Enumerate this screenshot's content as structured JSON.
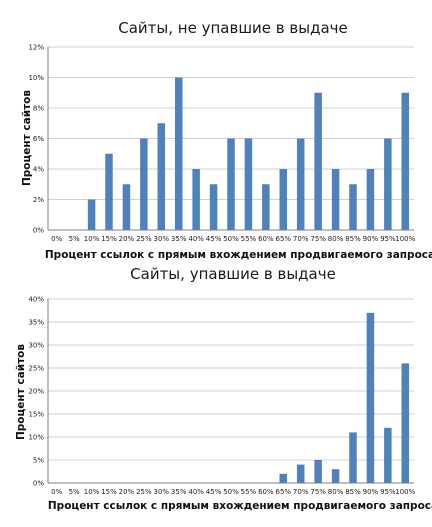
{
  "chart_data": [
    {
      "type": "bar",
      "title": "Сайты, не упавшие в выдаче",
      "xlabel": "Процент ссылок с прямым вхождением продвигаемого запроса",
      "ylabel": "Процент сайтов",
      "categories": [
        "0%",
        "5%",
        "10%",
        "15%",
        "20%",
        "25%",
        "30%",
        "35%",
        "40%",
        "45%",
        "50%",
        "55%",
        "60%",
        "65%",
        "70%",
        "75%",
        "80%",
        "85%",
        "90%",
        "95%",
        "100%"
      ],
      "values": [
        0,
        0,
        2,
        5,
        3,
        6,
        7,
        10,
        4,
        3,
        6,
        6,
        3,
        4,
        6,
        9,
        4,
        3,
        4,
        6,
        9
      ],
      "ylim": [
        0,
        12
      ],
      "yticks": [
        "0%",
        "2%",
        "4%",
        "6%",
        "8%",
        "10%",
        "12%"
      ],
      "grid": true,
      "bar_color": "#4f81bd"
    },
    {
      "type": "bar",
      "title": "Сайты, упавшие в выдаче",
      "xlabel": "Процент ссылок с прямым вхождением продвигаемого запроса",
      "ylabel": "Процент сайтов",
      "categories": [
        "0%",
        "5%",
        "10%",
        "15%",
        "20%",
        "25%",
        "30%",
        "35%",
        "40%",
        "45%",
        "50%",
        "55%",
        "60%",
        "65%",
        "70%",
        "75%",
        "80%",
        "85%",
        "90%",
        "95%",
        "100%"
      ],
      "values": [
        0,
        0,
        0,
        0,
        0,
        0,
        0,
        0,
        0,
        0,
        0,
        0,
        0,
        2,
        4,
        5,
        3,
        11,
        37,
        12,
        26
      ],
      "ylim": [
        0,
        40
      ],
      "yticks": [
        "0%",
        "5%",
        "10%",
        "15%",
        "20%",
        "25%",
        "30%",
        "35%",
        "40%"
      ],
      "grid": true,
      "bar_color": "#4f81bd"
    }
  ]
}
